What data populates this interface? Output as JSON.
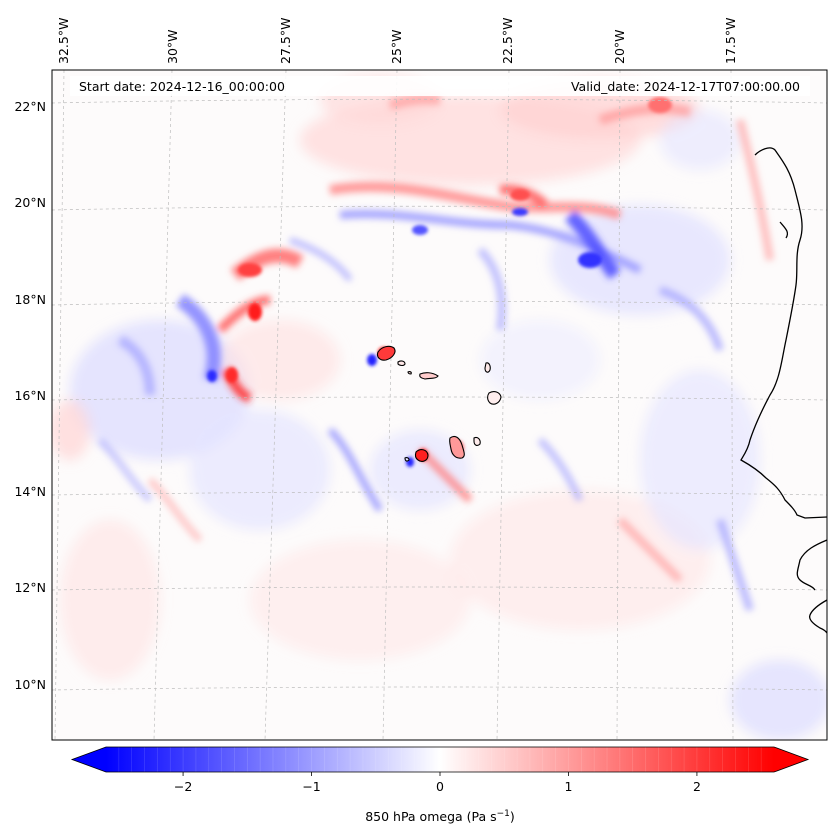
{
  "map": {
    "start_date": "Start date: 2024-12-16_00:00:00",
    "valid_date": "Valid_date: 2024-12-17T07:00:00.00",
    "lon_labels": [
      "32.5°W",
      "30°W",
      "27.5°W",
      "25°W",
      "22.5°W",
      "20°W",
      "17.5°W"
    ],
    "lat_labels": [
      "22°N",
      "20°N",
      "18°N",
      "16°N",
      "14°N",
      "12°N",
      "10°N"
    ],
    "colors": {
      "negative": "#0000ff",
      "positive": "#ff0000",
      "zero": "#ffffff",
      "coastline": "#000000",
      "gridline": "#b0b0b0"
    }
  },
  "colorbar": {
    "ticks": [
      "−2",
      "−1",
      "0",
      "1",
      "2"
    ],
    "tick_values": [
      -2,
      -1,
      0,
      1,
      2
    ],
    "range": [
      -2.6,
      2.6
    ],
    "label": "850 hPa omega (Pa s",
    "label_sup": "−1",
    "label_end": ")"
  }
}
